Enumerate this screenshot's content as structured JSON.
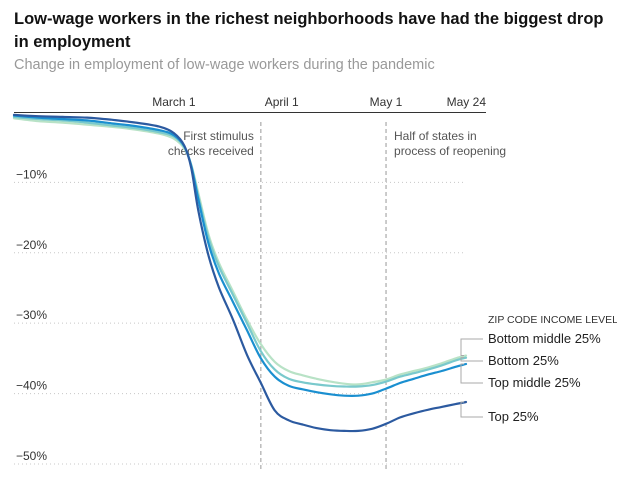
{
  "header": {
    "title": "Low-wage workers in the richest neighborhoods have had the biggest drop in employment",
    "subtitle": "Change in employment of low-wage workers during the pandemic"
  },
  "legend_title": "ZIP CODE INCOME LEVEL",
  "annotations": [
    {
      "date": "2020-03-26",
      "lines": [
        "First stimulus",
        "checks received"
      ],
      "anchor": "end"
    },
    {
      "date": "2020-05-01",
      "lines": [
        "Half of states in",
        "process of reopening"
      ],
      "anchor": "start"
    }
  ],
  "colors": {
    "top_25": "#2c5aa0",
    "top_middle_25": "#1a8fd0",
    "bottom_25": "#79c9cc",
    "bottom_middle_25": "#b8e2c6",
    "axis": "#333333",
    "grid": "#c8c8c8",
    "annotation_line": "#999999",
    "label": "#333333",
    "annotation_text": "#555555"
  },
  "chart_data": {
    "type": "line",
    "title": "Low-wage workers in the richest neighborhoods have had the biggest drop in employment",
    "subtitle": "Change in employment of low-wage workers during the pandemic",
    "xlabel": "",
    "ylabel": "",
    "x_range": [
      "2020-01-15",
      "2020-05-24"
    ],
    "ylim": [
      -51,
      0
    ],
    "x_ticks": [
      {
        "date": "2020-03-01",
        "label": "March 1"
      },
      {
        "date": "2020-04-01",
        "label": "April 1"
      },
      {
        "date": "2020-05-01",
        "label": "May 1"
      },
      {
        "date": "2020-05-24",
        "label": "May 24"
      }
    ],
    "y_ticks": [
      {
        "value": -10,
        "label": "−10%"
      },
      {
        "value": -20,
        "label": "−20%"
      },
      {
        "value": -30,
        "label": "−30%"
      },
      {
        "value": -40,
        "label": "−40%"
      },
      {
        "value": -50,
        "label": "−50%"
      }
    ],
    "grid": true,
    "x_dates": [
      "2020-01-15",
      "2020-01-22",
      "2020-01-29",
      "2020-02-05",
      "2020-02-12",
      "2020-02-19",
      "2020-02-26",
      "2020-03-01",
      "2020-03-04",
      "2020-03-06",
      "2020-03-08",
      "2020-03-11",
      "2020-03-14",
      "2020-03-18",
      "2020-03-22",
      "2020-03-26",
      "2020-03-30",
      "2020-04-03",
      "2020-04-07",
      "2020-04-11",
      "2020-04-15",
      "2020-04-19",
      "2020-04-23",
      "2020-04-27",
      "2020-05-01",
      "2020-05-05",
      "2020-05-09",
      "2020-05-13",
      "2020-05-17",
      "2020-05-21",
      "2020-05-24"
    ],
    "series": [
      {
        "name": "Bottom middle 25%",
        "color_key": "bottom_middle_25",
        "values": [
          -0.9,
          -1.3,
          -1.5,
          -1.8,
          -2.1,
          -2.5,
          -3.1,
          -3.8,
          -5.2,
          -7.5,
          -11.5,
          -17.5,
          -21.5,
          -25.5,
          -29.5,
          -33.0,
          -35.5,
          -36.8,
          -37.4,
          -37.9,
          -38.3,
          -38.6,
          -38.7,
          -38.4,
          -38.0,
          -37.3,
          -36.8,
          -36.3,
          -35.7,
          -35.0,
          -34.6
        ]
      },
      {
        "name": "Bottom 25%",
        "color_key": "bottom_25",
        "values": [
          -0.7,
          -1.0,
          -1.2,
          -1.5,
          -1.9,
          -2.3,
          -2.9,
          -3.5,
          -5.0,
          -7.6,
          -12.0,
          -18.0,
          -22.0,
          -26.0,
          -30.0,
          -34.0,
          -36.6,
          -37.9,
          -38.4,
          -38.7,
          -38.9,
          -39.0,
          -39.0,
          -38.8,
          -38.3,
          -37.6,
          -37.1,
          -36.6,
          -36.0,
          -35.3,
          -34.9
        ]
      },
      {
        "name": "Top middle 25%",
        "color_key": "top_middle_25",
        "values": [
          -0.5,
          -0.8,
          -1.0,
          -1.2,
          -1.6,
          -2.0,
          -2.6,
          -3.3,
          -4.9,
          -7.7,
          -12.4,
          -18.8,
          -23.0,
          -27.0,
          -31.0,
          -35.0,
          -37.6,
          -38.9,
          -39.4,
          -39.8,
          -40.1,
          -40.3,
          -40.3,
          -40.0,
          -39.3,
          -38.5,
          -37.9,
          -37.3,
          -36.8,
          -36.2,
          -35.8
        ]
      },
      {
        "name": "Top 25%",
        "color_key": "top_25",
        "values": [
          -0.4,
          -0.6,
          -0.7,
          -0.8,
          -1.1,
          -1.5,
          -2.1,
          -3.0,
          -4.8,
          -8.0,
          -14.0,
          -20.5,
          -25.0,
          -29.5,
          -34.5,
          -38.5,
          -42.4,
          -43.8,
          -44.4,
          -44.9,
          -45.2,
          -45.3,
          -45.3,
          -45.0,
          -44.3,
          -43.4,
          -42.8,
          -42.3,
          -41.9,
          -41.5,
          -41.2
        ]
      }
    ]
  }
}
